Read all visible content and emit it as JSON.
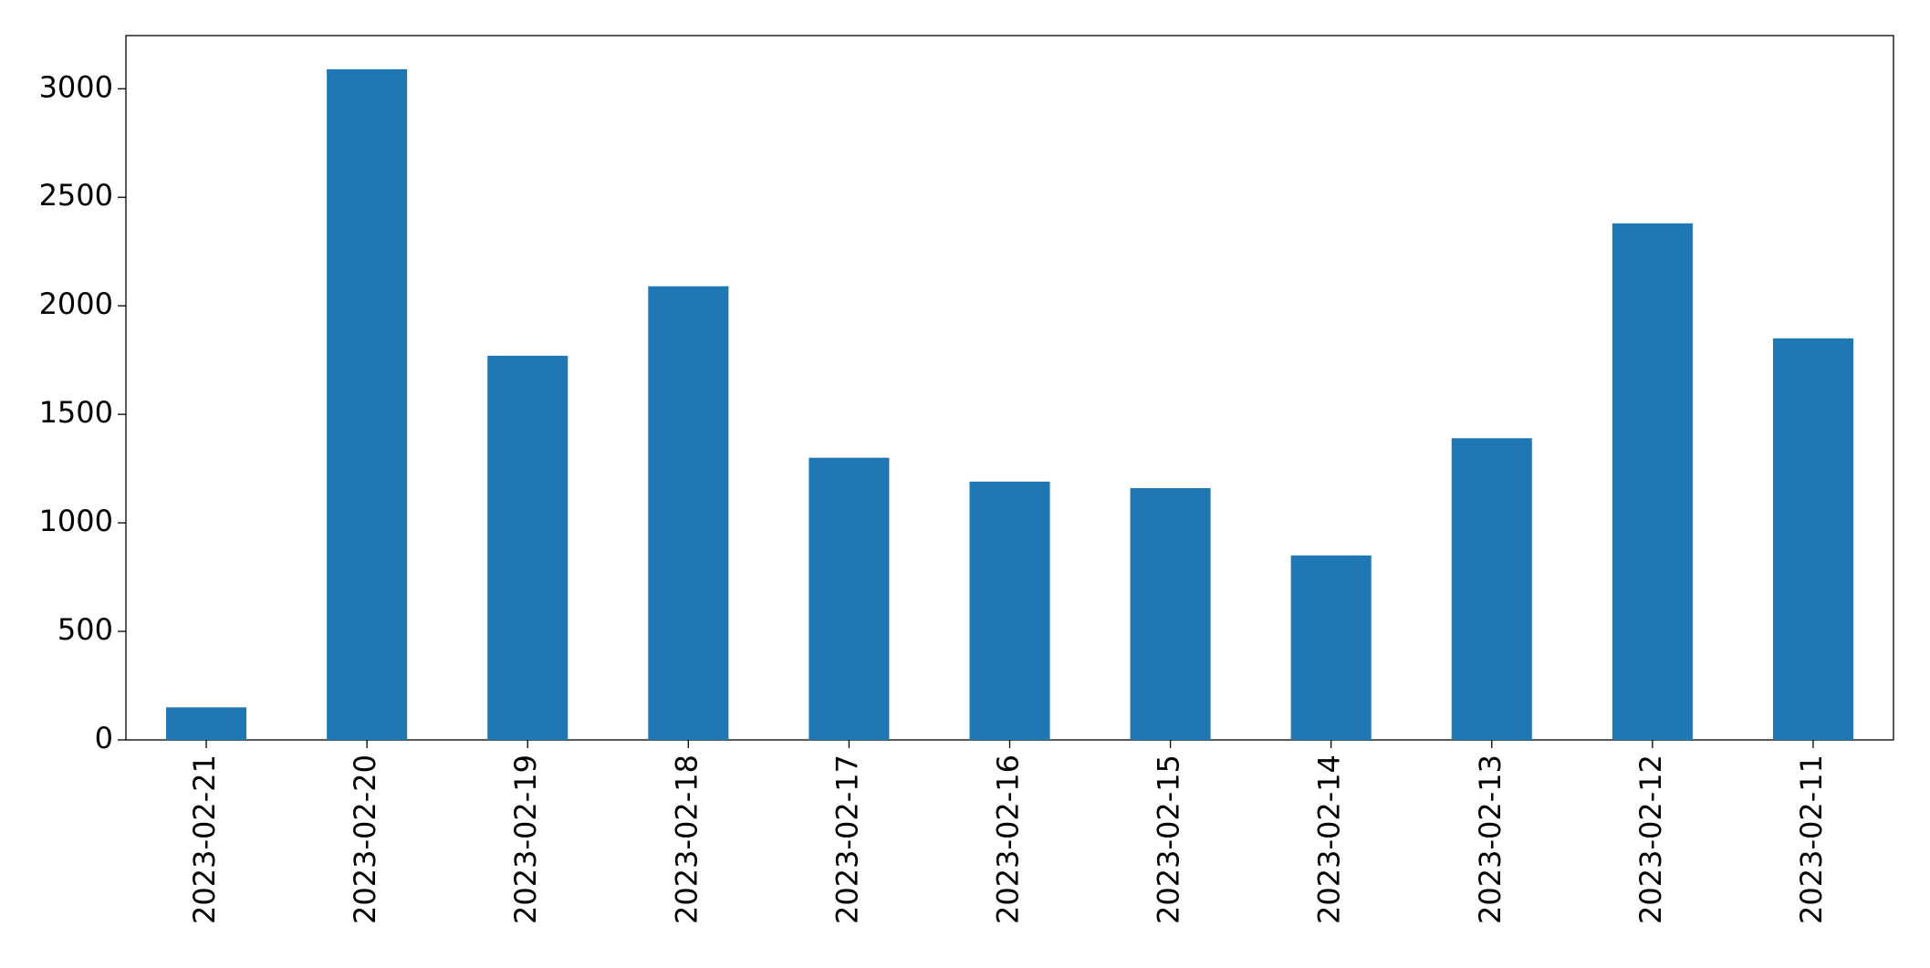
{
  "chart_data": {
    "type": "bar",
    "categories": [
      "2023-02-21",
      "2023-02-20",
      "2023-02-19",
      "2023-02-18",
      "2023-02-17",
      "2023-02-16",
      "2023-02-15",
      "2023-02-14",
      "2023-02-13",
      "2023-02-12",
      "2023-02-11"
    ],
    "values": [
      150,
      3090,
      1770,
      2090,
      1300,
      1190,
      1160,
      850,
      1390,
      2380,
      1850
    ],
    "color": "#1f77b4",
    "ylim": [
      0,
      3245
    ],
    "yticks": [
      0,
      500,
      1000,
      1500,
      2000,
      2500,
      3000
    ],
    "grid": false
  }
}
